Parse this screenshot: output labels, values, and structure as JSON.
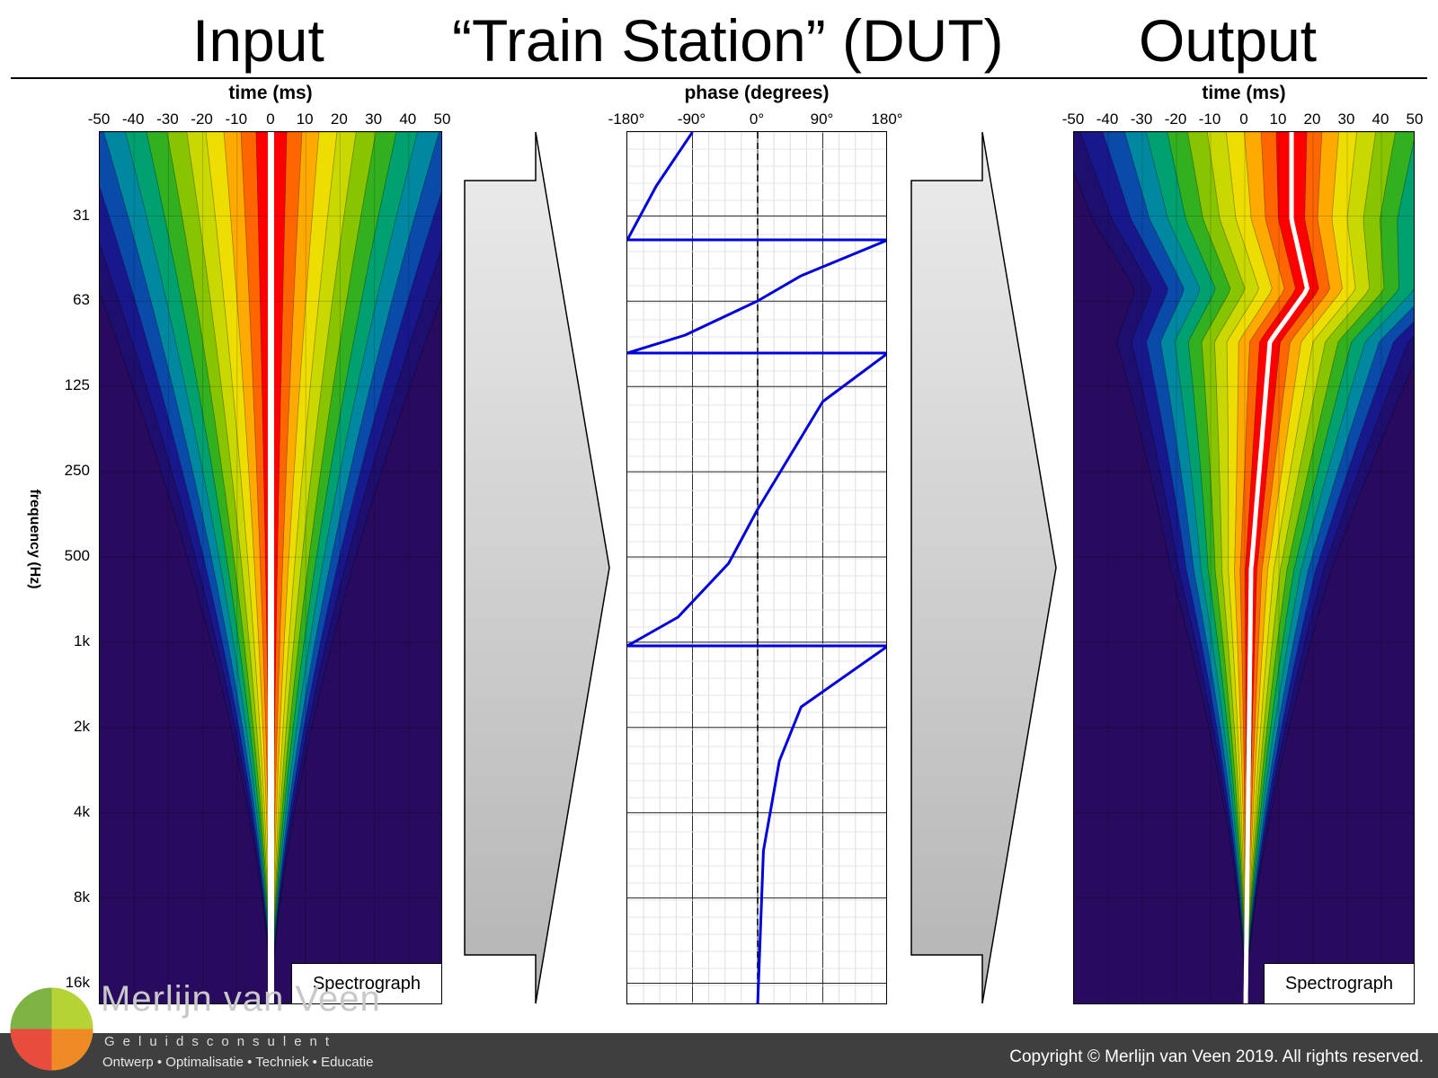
{
  "titles": {
    "input": "Input",
    "dut": "“Train Station” (DUT)",
    "output": "Output"
  },
  "left_plot": {
    "x_axis_title": "time (ms)",
    "x_ticks": [
      "-50",
      "-40",
      "-30",
      "-20",
      "-10",
      "0",
      "10",
      "20",
      "30",
      "40",
      "50"
    ],
    "y_axis_title": "frequency (Hz)",
    "y_ticks": [
      "31",
      "63",
      "125",
      "250",
      "500",
      "1k",
      "2k",
      "4k",
      "8k",
      "16k"
    ],
    "label": "Spectrograph"
  },
  "phase_plot": {
    "x_axis_title": "phase (degrees)",
    "x_ticks": [
      "-180°",
      "-90°",
      "0°",
      "90°",
      "180°"
    ]
  },
  "right_plot": {
    "x_axis_title": "time (ms)",
    "x_ticks": [
      "-50",
      "-40",
      "-30",
      "-20",
      "-10",
      "0",
      "10",
      "20",
      "30",
      "40",
      "50"
    ],
    "label": "Spectrograph"
  },
  "brand": {
    "name": "Merlijn van Veen",
    "subtitle": "Geluidsconsulent",
    "tagline": "Ontwerp • Optimalisatie • Techniek • Educatie"
  },
  "footer": {
    "copyright": "Copyright © Merlijn van Veen 2019. All rights reserved."
  },
  "colors": {
    "bands": [
      "#ff0000",
      "#ff6600",
      "#ffaa00",
      "#eedd00",
      "#c8d800",
      "#88c400",
      "#33b020",
      "#00a070",
      "#0088a0",
      "#0a4aa8",
      "#18188c",
      "#1e0e6e",
      "#280a5e"
    ],
    "phase_curve": "#0000dd",
    "footer_bg": "#3f3f3f"
  }
}
